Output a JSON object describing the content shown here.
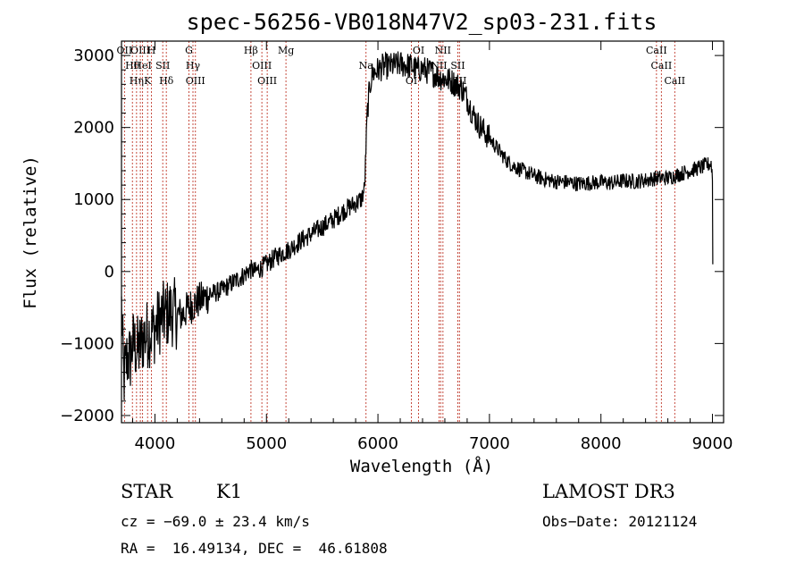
{
  "chart_data": {
    "type": "line",
    "title": "spec-56256-VB018N47V2_sp03-231.fits",
    "xlabel": "Wavelength (Å)",
    "ylabel": "Flux (relative)",
    "xlim": [
      3700,
      9100
    ],
    "ylim": [
      -2100,
      3200
    ],
    "xticks": [
      4000,
      5000,
      6000,
      7000,
      8000,
      9000
    ],
    "yticks": [
      -2000,
      -1000,
      0,
      1000,
      2000,
      3000
    ],
    "xtick_labels": [
      "4000",
      "5000",
      "6000",
      "7000",
      "8000",
      "9000"
    ],
    "ytick_labels": [
      "−2000",
      "−1000",
      "0",
      "1000",
      "2000",
      "3000"
    ],
    "series": [
      {
        "name": "flux",
        "x": [
          3700,
          3720,
          3750,
          3780,
          3800,
          3850,
          3900,
          3950,
          4000,
          4050,
          4100,
          4150,
          4200,
          4250,
          4300,
          4350,
          4400,
          4500,
          4600,
          4700,
          4800,
          4850,
          4900,
          5000,
          5100,
          5200,
          5300,
          5400,
          5500,
          5600,
          5700,
          5800,
          5850,
          5880,
          5900,
          5910,
          5930,
          5950,
          6000,
          6050,
          6100,
          6200,
          6300,
          6350,
          6400,
          6450,
          6500,
          6550,
          6600,
          6650,
          6700,
          6750,
          6800,
          6850,
          6900,
          6950,
          7000,
          7050,
          7100,
          7150,
          7200,
          7300,
          7400,
          7500,
          7600,
          7700,
          7800,
          7900,
          8000,
          8100,
          8200,
          8300,
          8400,
          8500,
          8600,
          8700,
          8800,
          8900,
          8950,
          8990,
          9000,
          9003
        ],
        "y": [
          -500,
          -1500,
          -1200,
          -1200,
          -1000,
          -1100,
          -900,
          -850,
          -800,
          -650,
          -600,
          -550,
          -600,
          -600,
          -500,
          -450,
          -400,
          -320,
          -260,
          -150,
          -50,
          30,
          0,
          100,
          220,
          300,
          420,
          520,
          620,
          720,
          850,
          950,
          1000,
          1150,
          2050,
          2300,
          2600,
          2750,
          2800,
          2850,
          2850,
          2880,
          2850,
          2800,
          2820,
          2780,
          2750,
          2700,
          2680,
          2650,
          2600,
          2550,
          2400,
          2200,
          2050,
          1950,
          1850,
          1750,
          1650,
          1550,
          1480,
          1400,
          1330,
          1280,
          1250,
          1240,
          1220,
          1230,
          1240,
          1230,
          1260,
          1250,
          1270,
          1300,
          1300,
          1350,
          1400,
          1450,
          1480,
          1500,
          1300,
          100
        ]
      }
    ],
    "spectral_lines": [
      {
        "x": 3727,
        "label": "OII"
      },
      {
        "x": 3798,
        "label": "Hθ"
      },
      {
        "x": 3835,
        "label": "Hη"
      },
      {
        "x": 3869,
        "label": "OIII"
      },
      {
        "x": 3889,
        "label": "HeI"
      },
      {
        "x": 3934,
        "label": "K"
      },
      {
        "x": 3969,
        "label": "H"
      },
      {
        "x": 4070,
        "label": "SII"
      },
      {
        "x": 4102,
        "label": "Hδ"
      },
      {
        "x": 4305,
        "label": "G"
      },
      {
        "x": 4341,
        "label": "Hγ"
      },
      {
        "x": 4363,
        "label": "OIII"
      },
      {
        "x": 4861,
        "label": "Hβ"
      },
      {
        "x": 4959,
        "label": "OIII"
      },
      {
        "x": 5007,
        "label": "OIII"
      },
      {
        "x": 5175,
        "label": "Mg"
      },
      {
        "x": 5893,
        "label": "Na"
      },
      {
        "x": 6300,
        "label": "OI"
      },
      {
        "x": 6364,
        "label": "OI"
      },
      {
        "x": 6548,
        "label": "NII"
      },
      {
        "x": 6563,
        "label": "Hα"
      },
      {
        "x": 6583,
        "label": "NII"
      },
      {
        "x": 6716,
        "label": "SII"
      },
      {
        "x": 6731,
        "label": "SII"
      },
      {
        "x": 8498,
        "label": "CaII"
      },
      {
        "x": 8542,
        "label": "CaII"
      },
      {
        "x": 8662,
        "label": "CaII"
      }
    ]
  },
  "info": {
    "class": "STAR",
    "subclass": "K1",
    "cz": "cz = −69.0 ± 23.4 km/s",
    "coords": "RA =  16.49134, DEC =  46.61808",
    "survey": "LAMOST DR3",
    "obs_date": "Obs−Date: 20121124"
  }
}
